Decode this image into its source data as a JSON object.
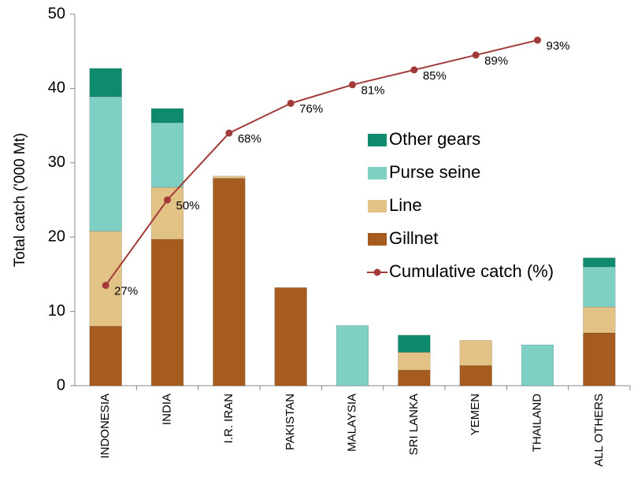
{
  "chart_data": {
    "type": "bar",
    "stacked": true,
    "ylabel": "Total catch ('000 Mt)",
    "categories": [
      "INDONESIA",
      "INDIA",
      "I.R. IRAN",
      "PAKISTAN",
      "MALAYSIA",
      "SRI LANKA",
      "YEMEN",
      "THAILAND",
      "ALL OTHERS"
    ],
    "ylim": [
      0,
      50
    ],
    "yticks": [
      0,
      10,
      20,
      30,
      40,
      50
    ],
    "y2lim": [
      0,
      100
    ],
    "series": [
      {
        "name": "Gillnet",
        "color": "#a65c1e",
        "values": [
          8.0,
          19.7,
          27.9,
          13.2,
          0,
          2.1,
          2.7,
          0,
          7.1
        ]
      },
      {
        "name": "Line",
        "color": "#e3c285",
        "values": [
          12.8,
          7.0,
          0.3,
          0,
          0,
          2.4,
          3.4,
          0,
          3.5
        ]
      },
      {
        "name": "Purse seine",
        "color": "#7fd0c4",
        "values": [
          18.1,
          8.7,
          0,
          0,
          8.1,
          0,
          0,
          5.5,
          5.4
        ]
      },
      {
        "name": "Other gears",
        "color": "#0e8a6e",
        "values": [
          3.8,
          1.9,
          0,
          0,
          0,
          2.3,
          0,
          0,
          1.2
        ]
      },
      {
        "name": "Cumulative catch (%)",
        "type": "line",
        "axis": "y2",
        "color": "#a33a3a",
        "values": [
          27,
          50,
          68,
          76,
          81,
          85,
          89,
          93,
          null
        ],
        "value_labels": [
          "27%",
          "50%",
          "68%",
          "76%",
          "81%",
          "85%",
          "89%",
          "93%",
          null
        ]
      }
    ]
  }
}
